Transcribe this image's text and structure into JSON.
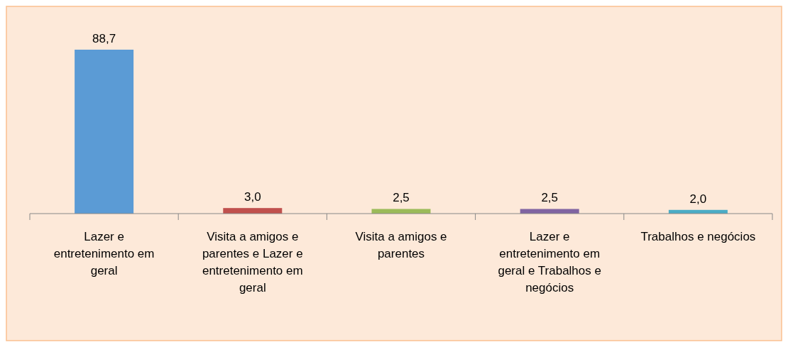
{
  "chart_data": {
    "type": "bar",
    "categories": [
      "Lazer e entretenimento em geral",
      "Visita a amigos e parentes e Lazer e entretenimento em geral",
      "Visita a amigos e parentes",
      "Lazer e entretenimento em geral e Trabalhos e negócios",
      "Trabalhos e negócios"
    ],
    "values": [
      88.7,
      3.0,
      2.5,
      2.5,
      2.0
    ],
    "colors": [
      "#5b9bd5",
      "#c0504d",
      "#9bbb59",
      "#8064a2",
      "#4bacc6"
    ],
    "value_labels": [
      "88,7",
      "3,0",
      "2,5",
      "2,5",
      "2,0"
    ]
  }
}
